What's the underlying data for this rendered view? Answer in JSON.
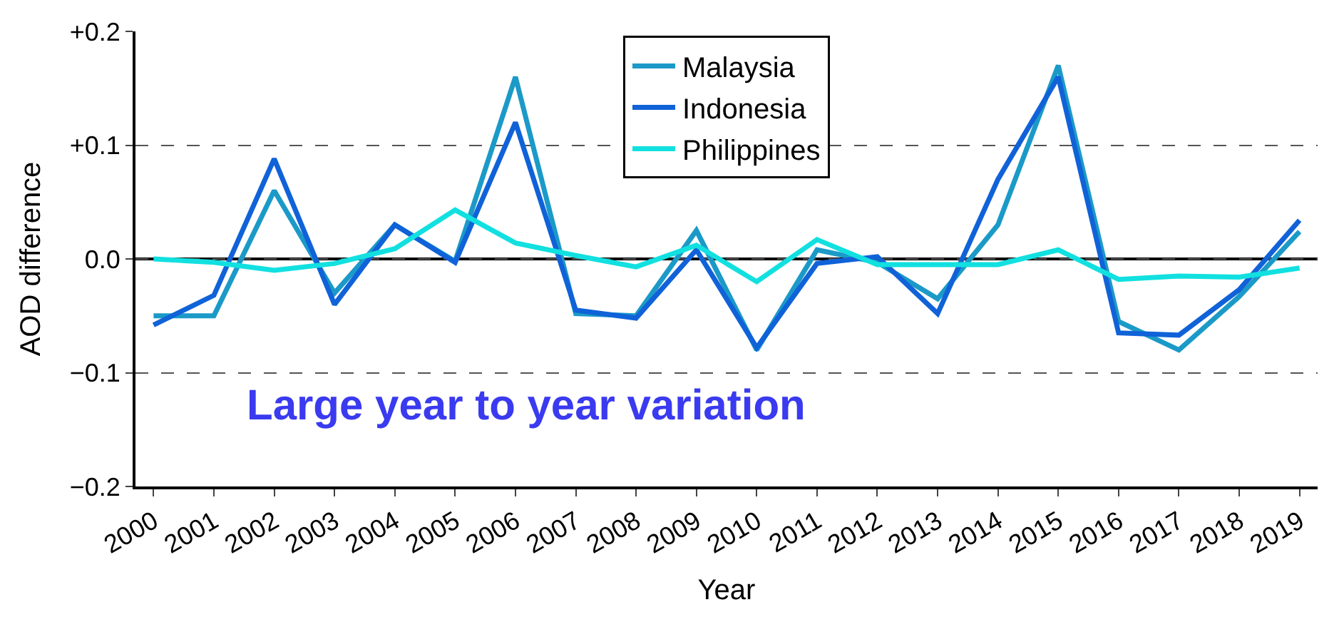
{
  "chart_data": {
    "type": "line",
    "xlabel": "Year",
    "ylabel": "AOD difference",
    "categories": [
      "2000",
      "2001",
      "2002",
      "2003",
      "2004",
      "2005",
      "2006",
      "2007",
      "2008",
      "2009",
      "2010",
      "2011",
      "2012",
      "2013",
      "2014",
      "2015",
      "2016",
      "2017",
      "2018",
      "2019"
    ],
    "series": [
      {
        "name": "Malaysia",
        "color": "#1b9ac8",
        "values": [
          -0.05,
          -0.05,
          0.06,
          -0.03,
          0.03,
          -0.002,
          0.16,
          -0.048,
          -0.05,
          0.025,
          -0.08,
          0.008,
          -0.003,
          -0.035,
          0.03,
          0.17,
          -0.055,
          -0.08,
          -0.033,
          0.024
        ]
      },
      {
        "name": "Indonesia",
        "color": "#1062d8",
        "values": [
          -0.058,
          -0.032,
          0.088,
          -0.04,
          0.03,
          -0.003,
          0.12,
          -0.045,
          -0.052,
          0.008,
          -0.078,
          -0.004,
          0.002,
          -0.048,
          0.07,
          0.16,
          -0.065,
          -0.067,
          -0.027,
          0.034
        ]
      },
      {
        "name": "Philippines",
        "color": "#12e0e0",
        "values": [
          0,
          -0.003,
          -0.01,
          -0.004,
          0.009,
          0.043,
          0.014,
          0.003,
          -0.007,
          0.012,
          -0.02,
          0.017,
          -0.005,
          -0.005,
          -0.005,
          0.008,
          -0.018,
          -0.015,
          -0.016,
          -0.008
        ]
      }
    ],
    "ylim": [
      -0.2,
      0.2
    ],
    "yticks": [
      {
        "value": -0.2,
        "label": "−0.2"
      },
      {
        "value": -0.1,
        "label": "−0.1"
      },
      {
        "value": 0,
        "label": "0.0"
      },
      {
        "value": 0.1,
        "label": "+0.1"
      },
      {
        "value": 0.2,
        "label": "+0.2"
      }
    ],
    "ref_lines": [
      {
        "axis": "y",
        "value": 0,
        "color": "#000000",
        "line_style": "solid"
      }
    ],
    "grid": "y",
    "legend": "top",
    "line_style": "solid",
    "marker": "none",
    "annotations": [
      "Large year to year variation"
    ]
  }
}
